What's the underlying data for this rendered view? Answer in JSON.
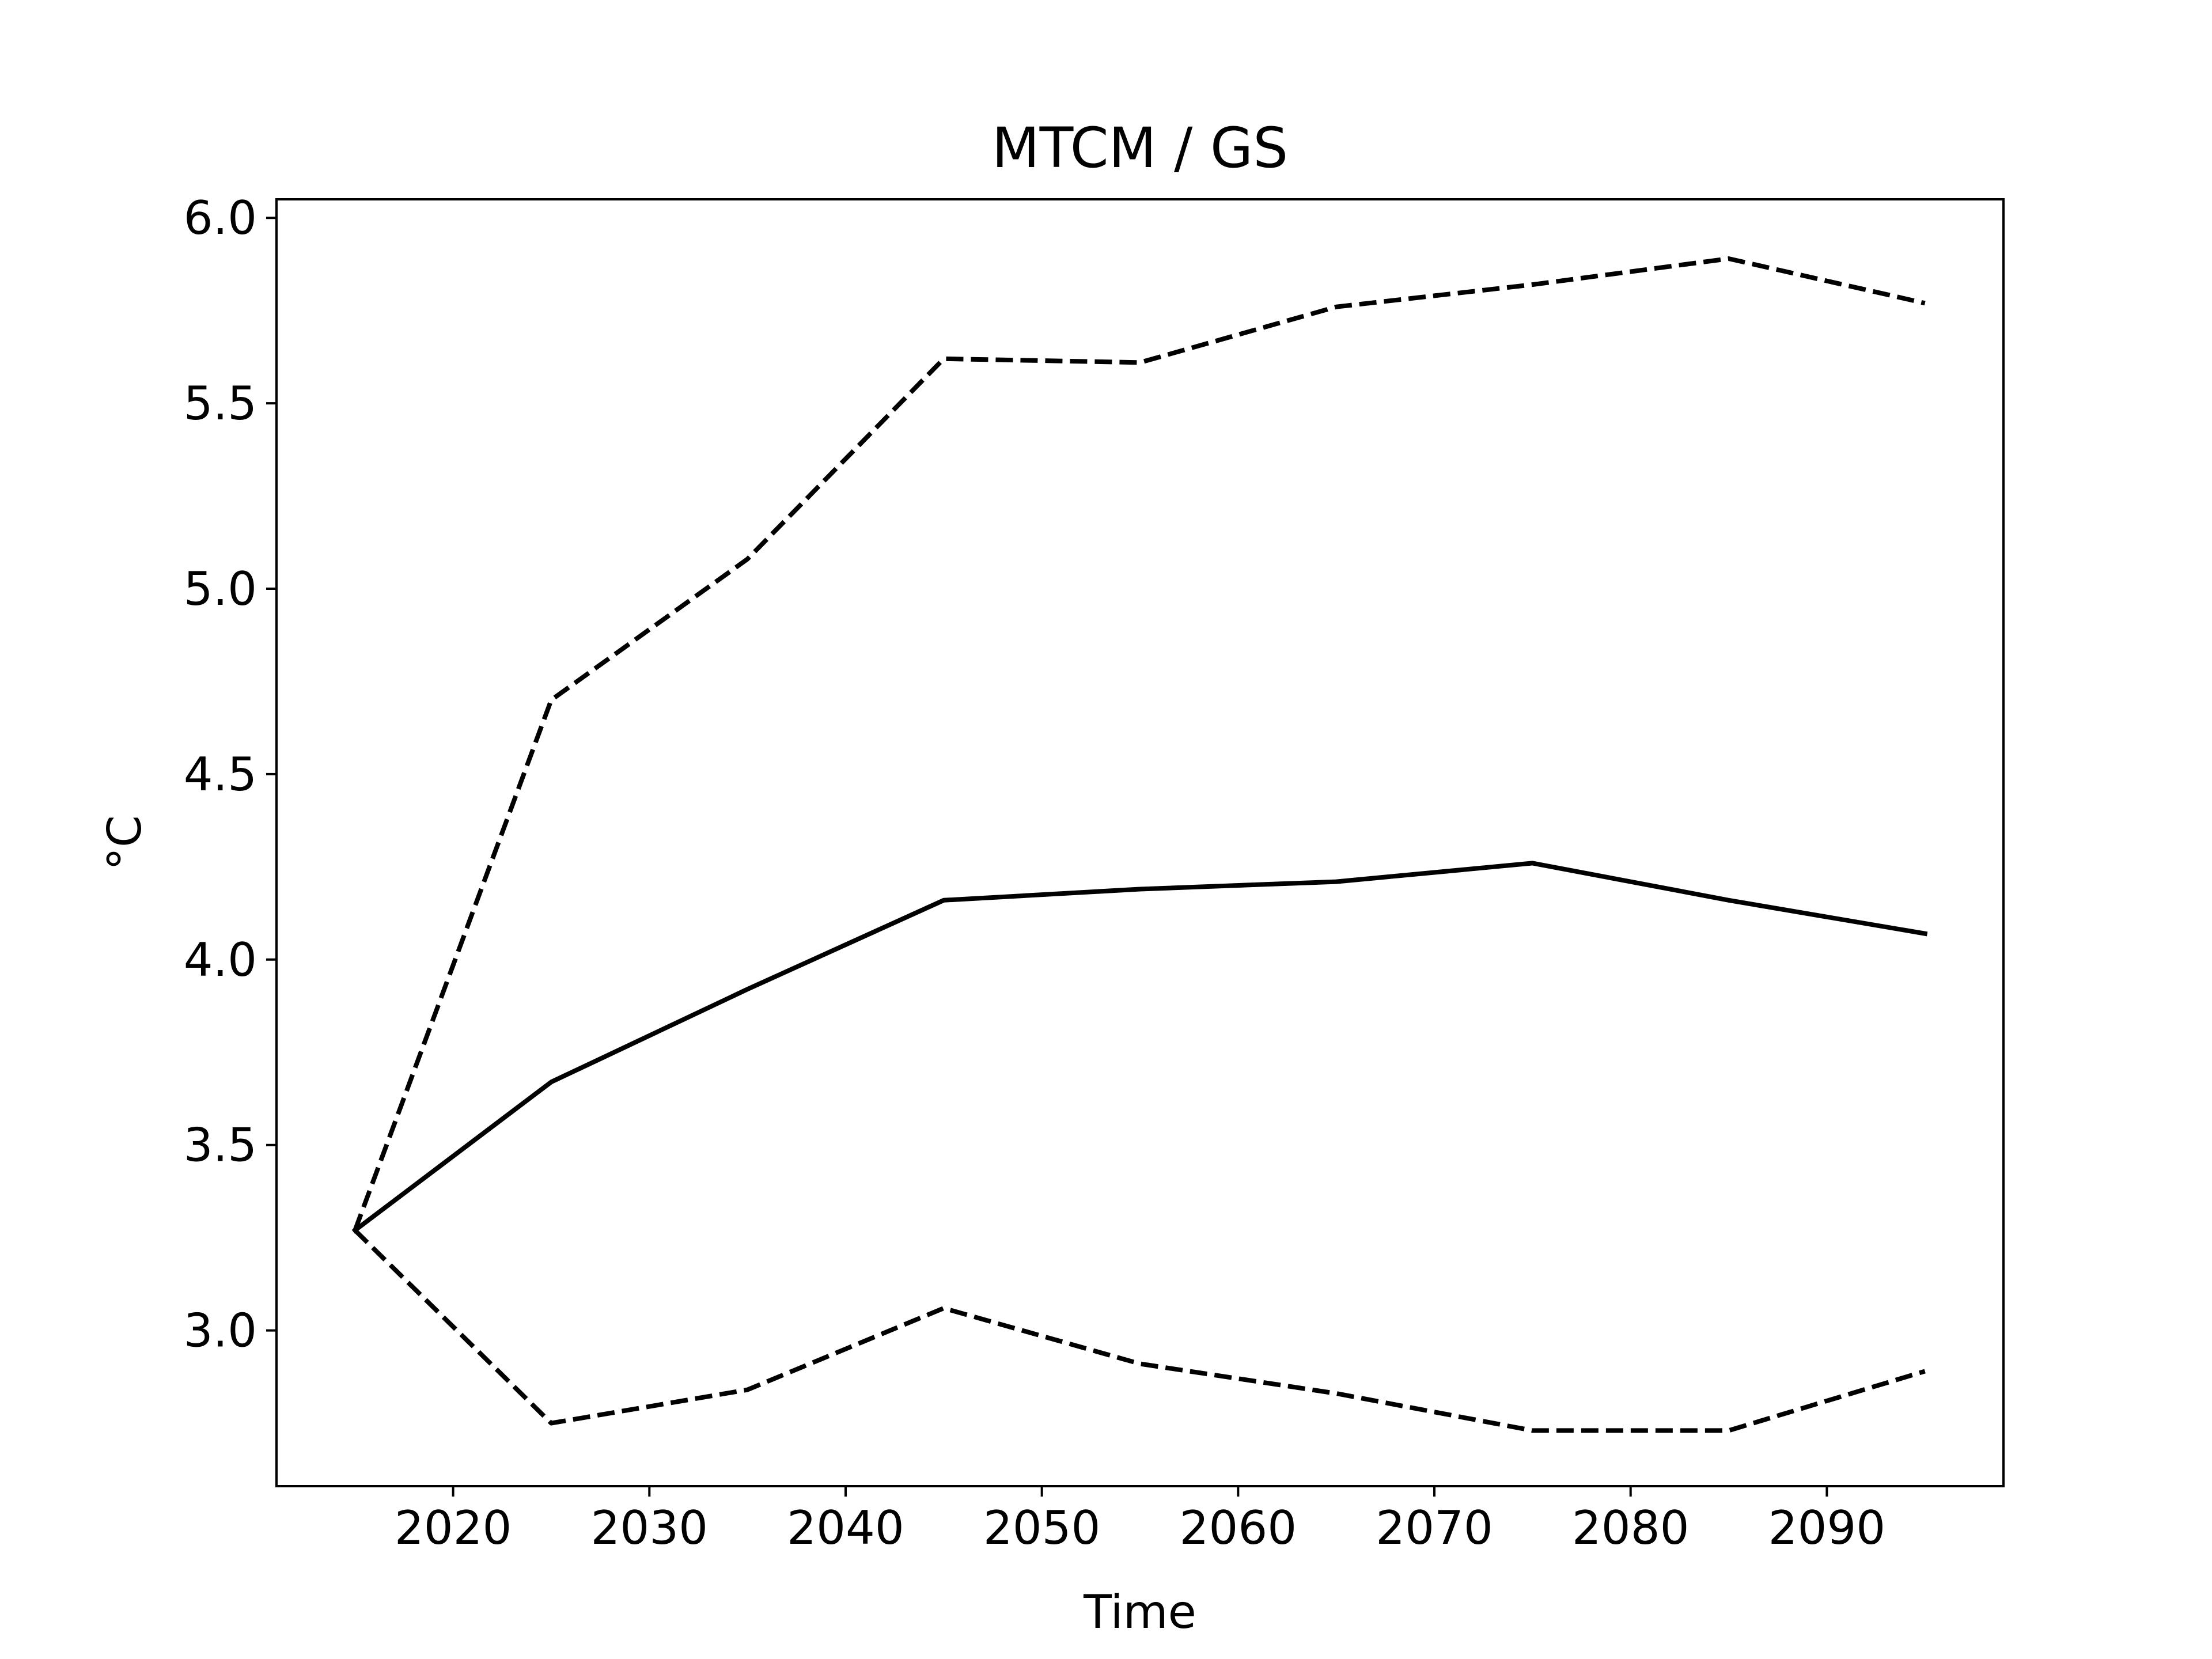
{
  "chart_data": {
    "type": "line",
    "title": "MTCM / GS",
    "xlabel": "Time",
    "ylabel": "°C",
    "xlim": [
      2011,
      2099
    ],
    "ylim": [
      2.58,
      6.05
    ],
    "x_ticks": [
      2020,
      2030,
      2040,
      2050,
      2060,
      2070,
      2080,
      2090
    ],
    "y_ticks": [
      3.0,
      3.5,
      4.0,
      4.5,
      5.0,
      5.5,
      6.0
    ],
    "x_tick_labels": [
      "2020",
      "2030",
      "2040",
      "2050",
      "2060",
      "2070",
      "2080",
      "2090"
    ],
    "y_tick_labels": [
      "3.0",
      "3.5",
      "4.0",
      "4.5",
      "5.0",
      "5.5",
      "6.0"
    ],
    "x": [
      2015,
      2025,
      2035,
      2045,
      2055,
      2065,
      2075,
      2085,
      2095
    ],
    "grid": false,
    "legend": "none",
    "series": [
      {
        "style": "solid",
        "color": "#000000",
        "values": [
          3.27,
          3.67,
          3.92,
          4.16,
          4.19,
          4.21,
          4.26,
          4.16,
          4.07
        ]
      },
      {
        "style": "dashed",
        "color": "#000000",
        "values": [
          3.27,
          4.7,
          5.08,
          5.62,
          5.61,
          5.76,
          5.82,
          5.89,
          5.77
        ]
      },
      {
        "style": "dashed",
        "color": "#000000",
        "values": [
          3.27,
          2.75,
          2.84,
          3.06,
          2.91,
          2.83,
          2.73,
          2.73,
          2.89
        ]
      }
    ]
  }
}
